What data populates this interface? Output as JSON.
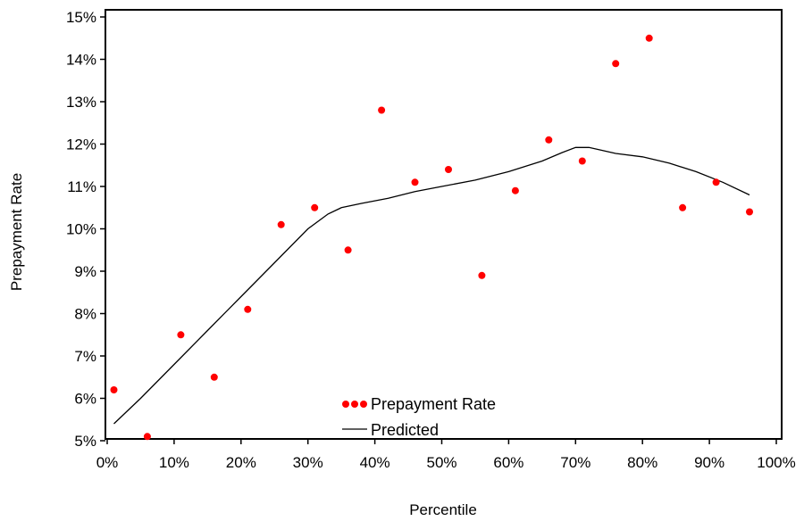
{
  "chart_data": {
    "type": "scatter",
    "xlabel": "Percentile",
    "ylabel": "Prepayment Rate",
    "xlim": [
      0,
      100
    ],
    "ylim": [
      4.8,
      15.2
    ],
    "x_ticks": [
      "0%",
      "10%",
      "20%",
      "30%",
      "40%",
      "50%",
      "60%",
      "70%",
      "80%",
      "90%",
      "100%"
    ],
    "y_ticks": [
      "5%",
      "6%",
      "7%",
      "8%",
      "9%",
      "10%",
      "11%",
      "12%",
      "13%",
      "14%",
      "15%"
    ],
    "grid": false,
    "legend_position": "bottom-center",
    "series": [
      {
        "name": "Prepayment Rate",
        "kind": "scatter",
        "color": "#ff0000",
        "x": [
          1,
          6,
          11,
          16,
          21,
          26,
          31,
          36,
          41,
          46,
          51,
          56,
          61,
          66,
          71,
          76,
          81,
          86,
          91,
          96
        ],
        "y": [
          6.2,
          5.1,
          7.5,
          6.5,
          8.1,
          10.1,
          10.5,
          9.5,
          12.8,
          11.1,
          11.4,
          8.9,
          10.9,
          12.1,
          11.6,
          13.9,
          14.5,
          10.5,
          11.1,
          10.4
        ]
      },
      {
        "name": "Predicted",
        "kind": "line",
        "color": "#000000",
        "x": [
          1,
          5,
          10,
          15,
          20,
          25,
          30,
          33,
          35,
          38,
          42,
          46,
          50,
          55,
          60,
          65,
          68,
          70,
          72,
          74,
          76,
          80,
          84,
          88,
          92,
          96
        ],
        "y": [
          5.4,
          6.0,
          6.8,
          7.6,
          8.4,
          9.2,
          10.0,
          10.35,
          10.5,
          10.6,
          10.72,
          10.88,
          11.0,
          11.15,
          11.35,
          11.6,
          11.8,
          11.92,
          11.92,
          11.85,
          11.78,
          11.7,
          11.55,
          11.35,
          11.1,
          10.8
        ]
      }
    ]
  }
}
